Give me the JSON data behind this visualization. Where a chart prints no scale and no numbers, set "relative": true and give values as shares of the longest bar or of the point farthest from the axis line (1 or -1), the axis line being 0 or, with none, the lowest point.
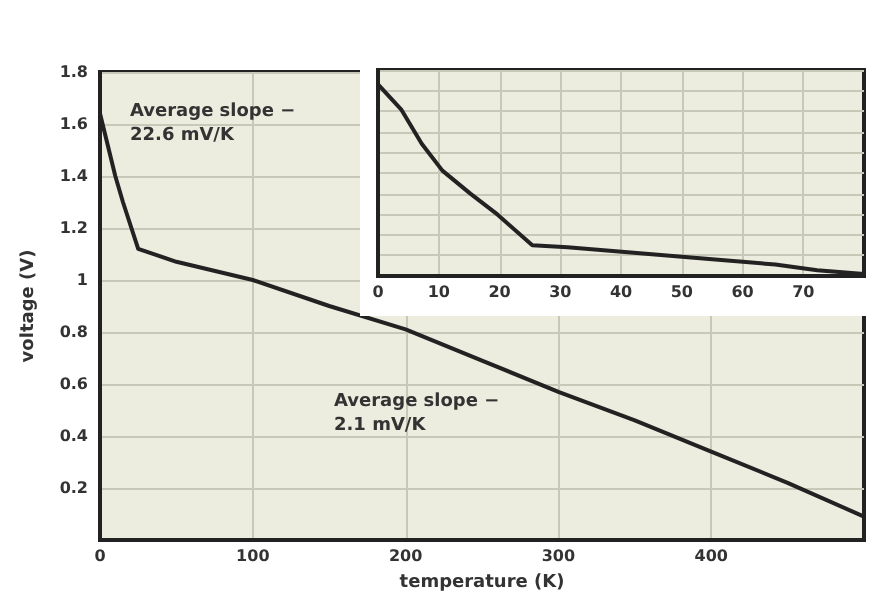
{
  "chart_data": [
    {
      "type": "line",
      "xlabel": "temperature (K)",
      "ylabel": "voltage (V)",
      "x": [
        0,
        5,
        10,
        15,
        25,
        50,
        100,
        150,
        200,
        250,
        300,
        350,
        400,
        450,
        500
      ],
      "series": [
        {
          "color": "#222222",
          "values": [
            1.64,
            1.52,
            1.4,
            1.3,
            1.12,
            1.07,
            1.0,
            0.9,
            0.81,
            0.69,
            0.57,
            0.46,
            0.34,
            0.22,
            0.09
          ]
        }
      ],
      "xlim": [
        0,
        500
      ],
      "xticks": [
        0,
        100,
        200,
        300,
        400
      ],
      "ylim": [
        0,
        1.8
      ],
      "yticks": [
        0.2,
        0.4,
        0.6,
        0.8,
        1.0,
        1.2,
        1.4,
        1.6,
        1.8
      ],
      "grid": true,
      "marker": "none",
      "line_style": "solid",
      "annotations": [
        "Average slope −22.6 mV/K",
        "Average slope −2.1 mV/K"
      ]
    },
    {
      "type": "line",
      "relative": true,
      "x": [
        0,
        3.8,
        7.2,
        10.6,
        15.2,
        19.7,
        25.4,
        31.2,
        42.6,
        54,
        65.4,
        72.3,
        80
      ],
      "series": [
        {
          "color": "#222222",
          "values": [
            1,
            0.87,
            0.69,
            0.55,
            0.43,
            0.32,
            0.16,
            0.15,
            0.12,
            0.09,
            0.06,
            0.03,
            0.01
          ]
        }
      ],
      "xlim": [
        0,
        80
      ],
      "xticks": [
        0,
        10,
        20,
        30,
        40,
        50,
        60,
        70
      ],
      "grid": true,
      "marker": "none",
      "line_style": "solid",
      "tick_labels": "x"
    }
  ]
}
